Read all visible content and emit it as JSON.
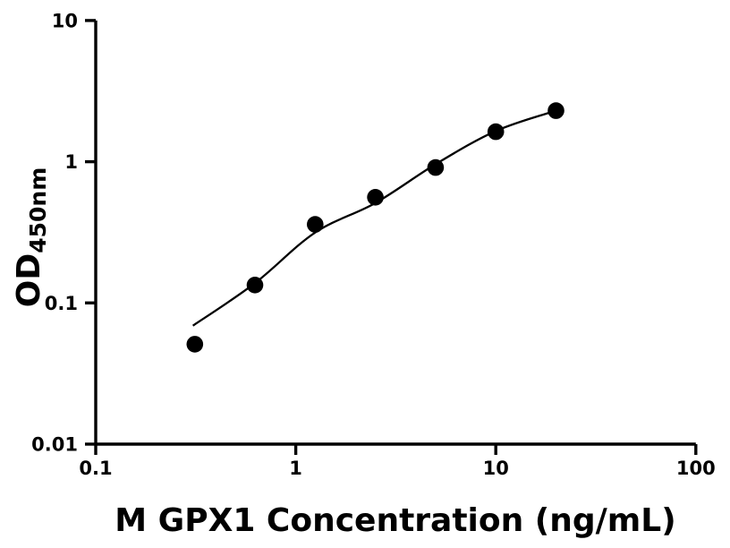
{
  "figure": {
    "background_color": "#ffffff",
    "foreground_color": "#000000"
  },
  "chart_data": {
    "type": "scatter",
    "title": "",
    "xlabel": "M GPX1 Concentration (ng/mL)",
    "ylabel": "OD",
    "ylabel_subscript": "450nm",
    "x_scale": "log",
    "y_scale": "log",
    "xlim": [
      0.1,
      100
    ],
    "ylim": [
      0.01,
      10
    ],
    "x_ticks": [
      0.1,
      1,
      10,
      100
    ],
    "x_tick_labels": [
      "0.1",
      "1",
      "10",
      "100"
    ],
    "y_ticks": [
      0.01,
      0.1,
      1,
      10
    ],
    "y_tick_labels": [
      "0.01",
      "0.1",
      "1",
      "10"
    ],
    "grid": false,
    "legend_position": "none",
    "series": [
      {
        "name": "standard-points",
        "type": "scatter",
        "marker": "filled-circle",
        "color": "#000000",
        "x": [
          0.313,
          0.625,
          1.25,
          2.5,
          5,
          10,
          20
        ],
        "y": [
          0.051,
          0.134,
          0.36,
          0.56,
          0.91,
          1.63,
          2.3
        ]
      },
      {
        "name": "fitted-curve",
        "type": "line",
        "color": "#000000",
        "x": [
          0.306,
          0.625,
          1.25,
          2.5,
          5,
          10,
          20
        ],
        "y": [
          0.069,
          0.138,
          0.315,
          0.51,
          0.96,
          1.65,
          2.3
        ]
      }
    ]
  }
}
